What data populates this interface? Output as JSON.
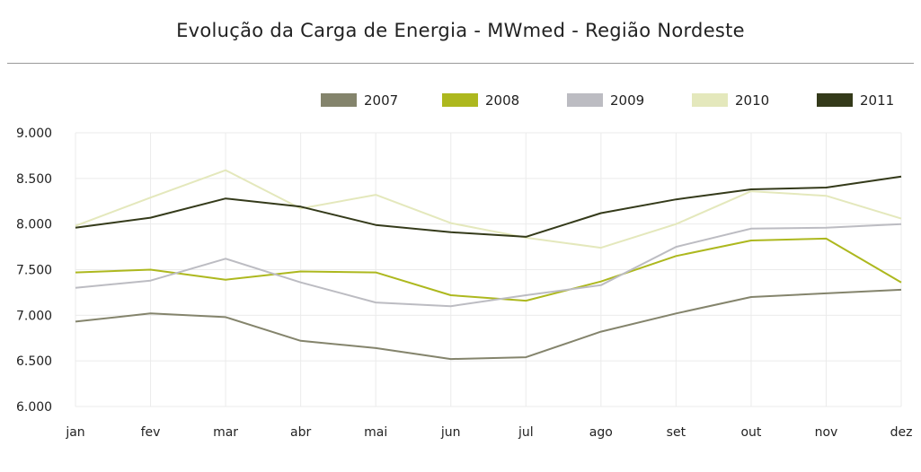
{
  "chart_data": {
    "type": "line",
    "title": "Evolução da Carga de Energia - MWmed - Região Nordeste",
    "categories": [
      "jan",
      "fev",
      "mar",
      "abr",
      "mai",
      "jun",
      "jul",
      "ago",
      "set",
      "out",
      "nov",
      "dez"
    ],
    "ylim": [
      6000,
      9000
    ],
    "y_ticks": [
      "6.000",
      "6.500",
      "7.000",
      "7.500",
      "8.000",
      "8.500",
      "9.000"
    ],
    "grid": true,
    "legend_position": "top-right",
    "series": [
      {
        "name": "2007",
        "color": "#84846c",
        "values": [
          6930,
          7020,
          6980,
          6720,
          6640,
          6520,
          6540,
          6820,
          7020,
          7200,
          7240,
          7280
        ]
      },
      {
        "name": "2008",
        "color": "#adb81e",
        "values": [
          7470,
          7500,
          7390,
          7480,
          7470,
          7220,
          7160,
          7370,
          7650,
          7820,
          7840,
          7360
        ]
      },
      {
        "name": "2009",
        "color": "#bcbcc2",
        "values": [
          7300,
          7380,
          7620,
          7360,
          7140,
          7100,
          7220,
          7330,
          7750,
          7950,
          7960,
          8000
        ]
      },
      {
        "name": "2010",
        "color": "#e4e8bc",
        "values": [
          7980,
          8290,
          8590,
          8170,
          8320,
          8010,
          7850,
          7740,
          8000,
          8360,
          8310,
          8060
        ]
      },
      {
        "name": "2011",
        "color": "#343a1a",
        "values": [
          7960,
          8070,
          8280,
          8190,
          7990,
          7910,
          7860,
          8120,
          8270,
          8380,
          8400,
          8520
        ]
      }
    ]
  }
}
